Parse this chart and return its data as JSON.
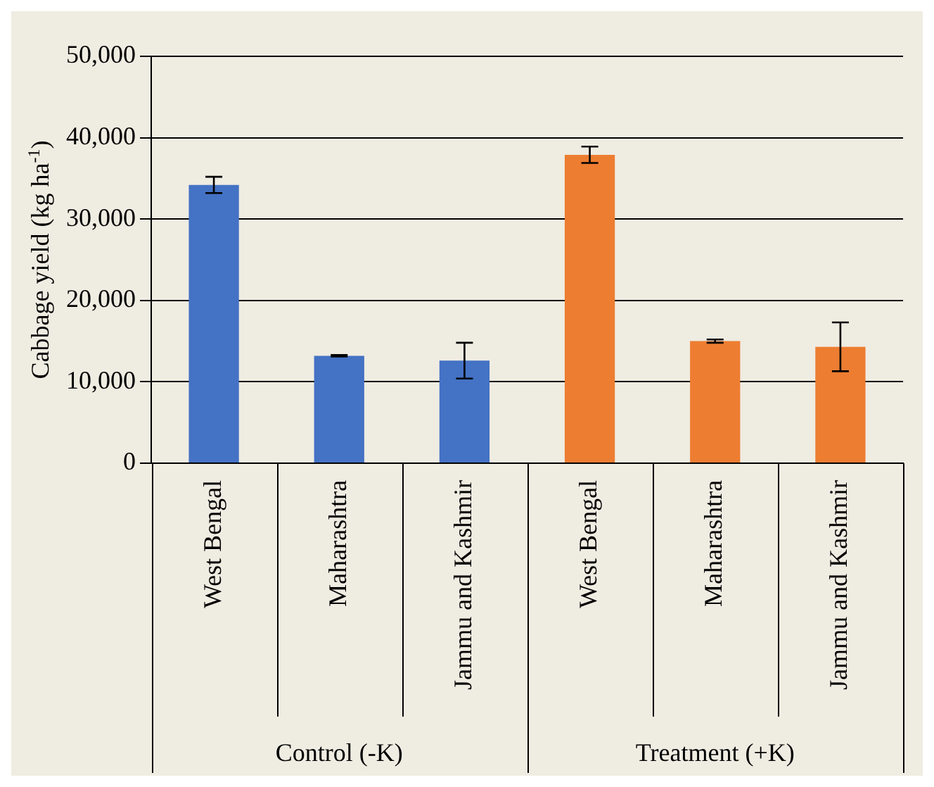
{
  "chart_data": {
    "type": "bar",
    "ylabel": "Cabbage yield (kg ha$^{-1}$)",
    "categories": [
      "West Bengal",
      "Maharashtra",
      "Jammu and Kashmir",
      "West Bengal",
      "Maharashtra",
      "Jammu and Kashmir"
    ],
    "values": [
      34200,
      13200,
      12600,
      37900,
      15000,
      14300
    ],
    "errors": [
      1000,
      100,
      2200,
      1000,
      200,
      3000
    ],
    "colors": [
      "#4472c4",
      "#4472c4",
      "#4472c4",
      "#ed7d31",
      "#ed7d31",
      "#ed7d31"
    ],
    "annotations": [
      "Control (-K)",
      "Treatment (+K)"
    ],
    "ylim": [
      0,
      50000
    ],
    "yticks": [
      {
        "value": 0,
        "label": "0"
      },
      {
        "value": 10000,
        "label": "10,000"
      },
      {
        "value": 20000,
        "label": "20,000"
      },
      {
        "value": 30000,
        "label": "30,000"
      },
      {
        "value": 40000,
        "label": "40,000"
      },
      {
        "value": 50000,
        "label": "50,000"
      }
    ],
    "grid": "y"
  }
}
